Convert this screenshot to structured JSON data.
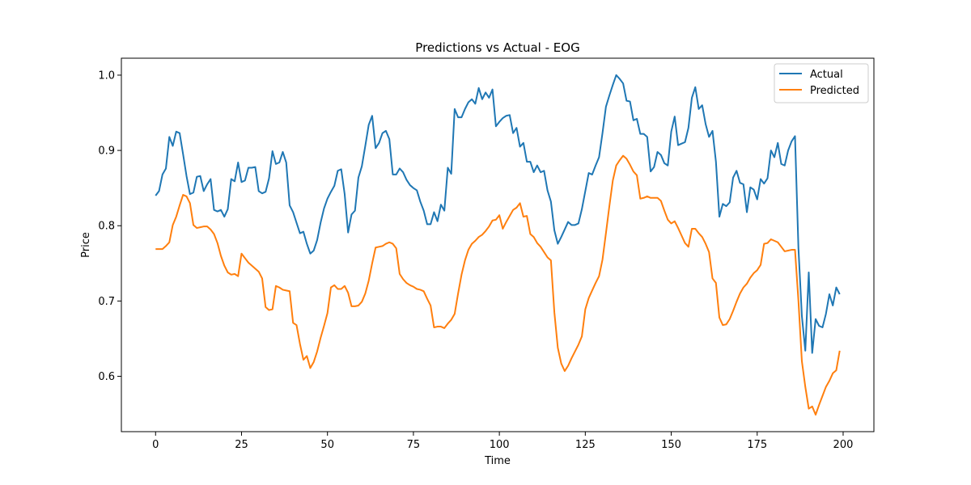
{
  "chart_data": {
    "type": "line",
    "title": "Predictions vs Actual - EOG",
    "xlabel": "Time",
    "ylabel": "Price",
    "xlim": [
      -9.95,
      208.95
    ],
    "ylim": [
      0.5265,
      1.0225
    ],
    "xticks": [
      0,
      25,
      50,
      75,
      100,
      125,
      150,
      175,
      200
    ],
    "yticks": [
      0.6,
      0.7,
      0.8,
      0.9,
      1.0
    ],
    "grid": false,
    "legend_position": "top-right",
    "series": [
      {
        "name": "Actual",
        "color": "#1f77b4",
        "x_start": 0,
        "values": [
          0.84,
          0.846,
          0.868,
          0.876,
          0.918,
          0.906,
          0.925,
          0.923,
          0.895,
          0.866,
          0.842,
          0.844,
          0.865,
          0.866,
          0.846,
          0.855,
          0.862,
          0.821,
          0.819,
          0.821,
          0.812,
          0.822,
          0.862,
          0.859,
          0.884,
          0.858,
          0.86,
          0.877,
          0.877,
          0.878,
          0.846,
          0.843,
          0.845,
          0.863,
          0.899,
          0.882,
          0.884,
          0.898,
          0.884,
          0.827,
          0.818,
          0.804,
          0.79,
          0.792,
          0.776,
          0.763,
          0.767,
          0.781,
          0.804,
          0.823,
          0.836,
          0.845,
          0.853,
          0.873,
          0.875,
          0.842,
          0.791,
          0.815,
          0.82,
          0.864,
          0.879,
          0.906,
          0.934,
          0.946,
          0.903,
          0.91,
          0.923,
          0.926,
          0.915,
          0.868,
          0.868,
          0.876,
          0.871,
          0.861,
          0.854,
          0.85,
          0.847,
          0.832,
          0.82,
          0.802,
          0.802,
          0.818,
          0.806,
          0.828,
          0.82,
          0.877,
          0.869,
          0.955,
          0.944,
          0.944,
          0.955,
          0.964,
          0.968,
          0.962,
          0.983,
          0.968,
          0.977,
          0.97,
          0.981,
          0.932,
          0.938,
          0.943,
          0.946,
          0.947,
          0.923,
          0.93,
          0.905,
          0.91,
          0.885,
          0.885,
          0.871,
          0.88,
          0.871,
          0.873,
          0.847,
          0.832,
          0.794,
          0.776,
          0.785,
          0.795,
          0.805,
          0.801,
          0.801,
          0.803,
          0.822,
          0.846,
          0.87,
          0.868,
          0.88,
          0.891,
          0.923,
          0.958,
          0.973,
          0.987,
          1.0,
          0.995,
          0.989,
          0.966,
          0.965,
          0.94,
          0.942,
          0.922,
          0.922,
          0.918,
          0.872,
          0.878,
          0.898,
          0.894,
          0.883,
          0.88,
          0.925,
          0.945,
          0.907,
          0.909,
          0.911,
          0.93,
          0.97,
          0.984,
          0.955,
          0.96,
          0.935,
          0.918,
          0.926,
          0.885,
          0.812,
          0.829,
          0.826,
          0.831,
          0.864,
          0.873,
          0.857,
          0.855,
          0.818,
          0.851,
          0.848,
          0.835,
          0.862,
          0.856,
          0.863,
          0.9,
          0.891,
          0.91,
          0.882,
          0.88,
          0.9,
          0.912,
          0.919,
          0.77,
          0.68,
          0.634,
          0.738,
          0.631,
          0.676,
          0.667,
          0.665,
          0.683,
          0.709,
          0.694,
          0.718,
          0.709
        ]
      },
      {
        "name": "Predicted",
        "color": "#ff7f0e",
        "x_start": 0,
        "values": [
          0.769,
          0.769,
          0.769,
          0.773,
          0.778,
          0.801,
          0.812,
          0.827,
          0.841,
          0.839,
          0.83,
          0.801,
          0.797,
          0.798,
          0.799,
          0.799,
          0.795,
          0.789,
          0.777,
          0.76,
          0.747,
          0.738,
          0.735,
          0.736,
          0.733,
          0.763,
          0.757,
          0.751,
          0.747,
          0.743,
          0.739,
          0.73,
          0.692,
          0.688,
          0.689,
          0.72,
          0.718,
          0.715,
          0.714,
          0.713,
          0.671,
          0.668,
          0.643,
          0.622,
          0.627,
          0.611,
          0.619,
          0.633,
          0.651,
          0.667,
          0.684,
          0.718,
          0.721,
          0.716,
          0.716,
          0.72,
          0.711,
          0.693,
          0.693,
          0.694,
          0.699,
          0.71,
          0.727,
          0.75,
          0.771,
          0.772,
          0.773,
          0.776,
          0.778,
          0.776,
          0.77,
          0.736,
          0.729,
          0.724,
          0.721,
          0.719,
          0.716,
          0.715,
          0.713,
          0.703,
          0.694,
          0.665,
          0.666,
          0.666,
          0.664,
          0.67,
          0.675,
          0.683,
          0.71,
          0.735,
          0.754,
          0.768,
          0.776,
          0.78,
          0.785,
          0.788,
          0.793,
          0.799,
          0.807,
          0.808,
          0.814,
          0.796,
          0.805,
          0.813,
          0.821,
          0.824,
          0.83,
          0.812,
          0.813,
          0.789,
          0.785,
          0.777,
          0.772,
          0.765,
          0.758,
          0.754,
          0.685,
          0.638,
          0.617,
          0.607,
          0.614,
          0.624,
          0.633,
          0.642,
          0.653,
          0.689,
          0.704,
          0.714,
          0.724,
          0.733,
          0.755,
          0.79,
          0.826,
          0.86,
          0.88,
          0.887,
          0.893,
          0.889,
          0.881,
          0.872,
          0.867,
          0.836,
          0.837,
          0.839,
          0.837,
          0.837,
          0.837,
          0.833,
          0.82,
          0.808,
          0.803,
          0.806,
          0.797,
          0.787,
          0.777,
          0.772,
          0.796,
          0.796,
          0.79,
          0.785,
          0.776,
          0.765,
          0.73,
          0.724,
          0.678,
          0.668,
          0.669,
          0.676,
          0.687,
          0.699,
          0.71,
          0.718,
          0.723,
          0.731,
          0.737,
          0.741,
          0.748,
          0.776,
          0.777,
          0.782,
          0.78,
          0.778,
          0.772,
          0.766,
          0.767,
          0.768,
          0.768,
          0.7,
          0.62,
          0.586,
          0.557,
          0.56,
          0.549,
          0.562,
          0.574,
          0.586,
          0.594,
          0.604,
          0.608,
          0.634
        ]
      }
    ]
  }
}
